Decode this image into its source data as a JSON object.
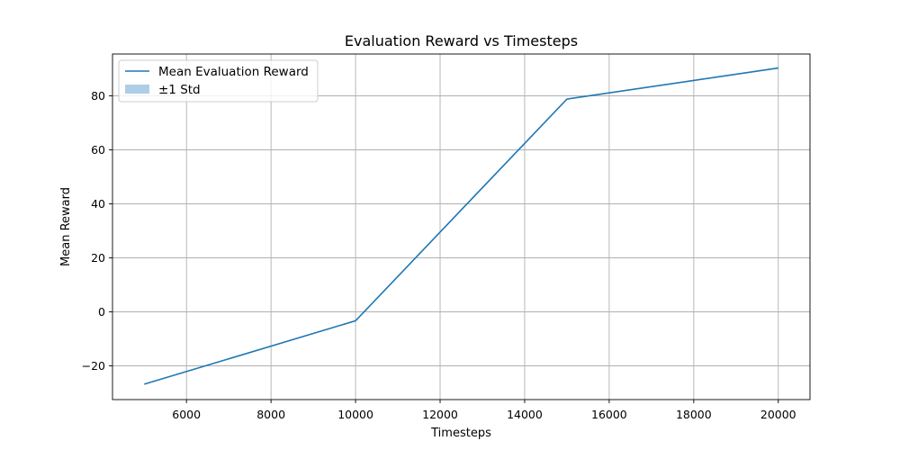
{
  "chart_data": {
    "type": "line",
    "title": "Evaluation Reward vs Timesteps",
    "xlabel": "Timesteps",
    "ylabel": "Mean Reward",
    "x": [
      5000,
      10000,
      15000,
      20000
    ],
    "series": [
      {
        "name": "Mean Evaluation Reward",
        "values": [
          -26.8,
          -3.3,
          78.8,
          90.3
        ],
        "color": "#1f77b4"
      }
    ],
    "band_legend": {
      "name": "±1 Std",
      "color": "#aecde6"
    },
    "xlim": [
      4250,
      20750
    ],
    "ylim": [
      -32.5,
      95.5
    ],
    "xticks": [
      6000,
      8000,
      10000,
      12000,
      14000,
      16000,
      18000,
      20000
    ],
    "yticks": [
      -20,
      0,
      20,
      40,
      60,
      80
    ],
    "grid": true,
    "legend_position": "top-left"
  }
}
